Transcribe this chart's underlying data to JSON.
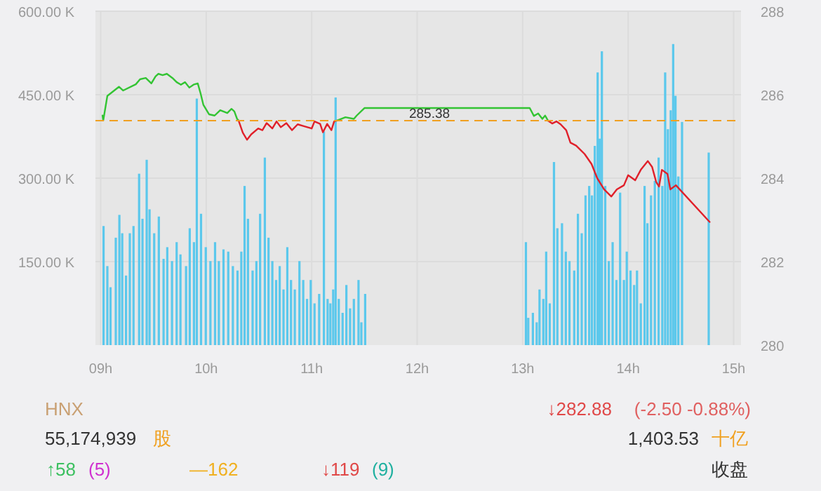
{
  "chart_data": [
    {
      "type": "bar",
      "xlim": [
        8.95,
        15.07
      ],
      "xticks": [
        {
          "value": 9,
          "label": "09h"
        },
        {
          "value": 10,
          "label": "10h"
        },
        {
          "value": 11,
          "label": "11h"
        },
        {
          "value": 12,
          "label": "12h"
        },
        {
          "value": 13,
          "label": "13h"
        },
        {
          "value": 14,
          "label": "14h"
        },
        {
          "value": 15,
          "label": "15h"
        }
      ],
      "ylim": [
        0,
        600000
      ],
      "yticks": [
        {
          "value": 150000,
          "label": "150.00 K"
        },
        {
          "value": 300000,
          "label": "300.00 K"
        },
        {
          "value": 450000,
          "label": "450.00 K"
        },
        {
          "value": 600000,
          "label": "600.00 K"
        }
      ],
      "y2lim": [
        280,
        288
      ],
      "y2ticks": [
        280,
        282,
        284,
        286,
        288
      ],
      "grid": true,
      "ref_lines": [
        {
          "axis": "y2",
          "value": 285.38,
          "label": "285.38",
          "color": "#f0a020",
          "line_style": "dashed"
        }
      ],
      "series": [
        {
          "type": "bar",
          "color": "#5bc8ec",
          "x": [
            9.027,
            9.063,
            9.093,
            9.143,
            9.177,
            9.204,
            9.24,
            9.276,
            9.311,
            9.364,
            9.396,
            9.436,
            9.463,
            9.507,
            9.551,
            9.596,
            9.631,
            9.676,
            9.72,
            9.756,
            9.809,
            9.844,
            9.884,
            9.911,
            9.951,
            9.996,
            10.04,
            10.084,
            10.12,
            10.164,
            10.209,
            10.253,
            10.297,
            10.333,
            10.364,
            10.396,
            10.44,
            10.476,
            10.511,
            10.556,
            10.591,
            10.627,
            10.663,
            10.697,
            10.733,
            10.769,
            10.804,
            10.84,
            10.884,
            10.92,
            10.956,
            10.991,
            11.027,
            11.071,
            11.116,
            11.151,
            11.177,
            11.204,
            11.227,
            11.257,
            11.293,
            11.329,
            11.364,
            11.4,
            11.444,
            11.471,
            11.507,
            13.031,
            13.053,
            13.097,
            13.133,
            13.16,
            13.196,
            13.223,
            13.257,
            13.297,
            13.329,
            13.373,
            13.409,
            13.444,
            13.489,
            13.524,
            13.56,
            13.596,
            13.631,
            13.657,
            13.684,
            13.711,
            13.729,
            13.751,
            13.783,
            13.817,
            13.853,
            13.889,
            13.924,
            13.96,
            13.987,
            14.023,
            14.057,
            14.084,
            14.12,
            14.156,
            14.183,
            14.217,
            14.253,
            14.289,
            14.324,
            14.351,
            14.377,
            14.404,
            14.427,
            14.449,
            14.476,
            14.511,
            14.764
          ],
          "values": [
            214000,
            142000,
            104000,
            193000,
            234000,
            201000,
            125000,
            201000,
            214000,
            308000,
            227000,
            333000,
            244000,
            201000,
            231000,
            155000,
            176000,
            151000,
            185000,
            163000,
            142000,
            210000,
            185000,
            443000,
            236000,
            176000,
            151000,
            185000,
            151000,
            172000,
            168000,
            142000,
            134000,
            168000,
            286000,
            227000,
            134000,
            151000,
            236000,
            337000,
            193000,
            151000,
            117000,
            142000,
            100000,
            176000,
            117000,
            100000,
            151000,
            117000,
            83000,
            117000,
            75000,
            92000,
            384000,
            83000,
            75000,
            100000,
            445000,
            83000,
            58000,
            108000,
            66000,
            83000,
            117000,
            41000,
            92000,
            185000,
            49000,
            58000,
            41000,
            100000,
            83000,
            168000,
            75000,
            329000,
            210000,
            219000,
            168000,
            151000,
            134000,
            236000,
            201000,
            269000,
            286000,
            269000,
            358000,
            490000,
            371000,
            528000,
            286000,
            151000,
            185000,
            117000,
            274000,
            117000,
            168000,
            134000,
            108000,
            134000,
            75000,
            286000,
            219000,
            269000,
            295000,
            337000,
            286000,
            490000,
            388000,
            422000,
            541000,
            448000,
            303000,
            401000,
            346000
          ]
        },
        {
          "type": "line",
          "axis": "y2",
          "color": "#33c433",
          "x": [
            9.017,
            9.024,
            9.063,
            9.173,
            9.213,
            9.333,
            9.373,
            9.427,
            9.48,
            9.52,
            9.547,
            9.587,
            9.627,
            9.68,
            9.72,
            9.76,
            9.8,
            9.84,
            9.88,
            9.92,
            9.947,
            9.973,
            10.027,
            10.08,
            10.133,
            10.2,
            10.24,
            10.267,
            10.293,
            10.307
          ],
          "values": [
            285.5,
            285.38,
            285.97,
            286.19,
            286.1,
            286.25,
            286.37,
            286.4,
            286.27,
            286.44,
            286.5,
            286.47,
            286.5,
            286.4,
            286.3,
            286.24,
            286.3,
            286.17,
            286.24,
            286.27,
            286.03,
            285.76,
            285.53,
            285.5,
            285.63,
            285.56,
            285.66,
            285.6,
            285.42,
            285.38
          ]
        },
        {
          "type": "line",
          "axis": "y2",
          "color": "#33c433",
          "x": [
            11.24,
            11.32,
            11.4,
            11.427,
            11.5,
            13.067,
            13.107,
            13.147,
            13.187,
            13.213,
            13.24
          ],
          "values": [
            285.38,
            285.46,
            285.42,
            285.5,
            285.68,
            285.68,
            285.49,
            285.55,
            285.42,
            285.5,
            285.38
          ]
        },
        {
          "type": "line",
          "axis": "y2",
          "color": "#e0202a",
          "x": [
            10.307,
            10.347,
            10.387,
            10.427,
            10.493,
            10.533,
            10.573,
            10.627,
            10.667,
            10.707,
            10.76,
            10.813,
            10.867,
            10.92,
            11.0,
            11.027,
            11.08,
            11.107,
            11.147,
            11.187,
            11.213,
            11.24
          ],
          "values": [
            285.38,
            285.09,
            284.92,
            285.05,
            285.19,
            285.15,
            285.32,
            285.19,
            285.36,
            285.22,
            285.32,
            285.15,
            285.29,
            285.25,
            285.19,
            285.36,
            285.3,
            285.1,
            285.3,
            285.15,
            285.36,
            285.38
          ]
        },
        {
          "type": "line",
          "axis": "y2",
          "color": "#e0202a",
          "x": [
            13.24,
            13.28,
            13.32,
            13.36,
            13.413,
            13.453,
            13.507,
            13.587,
            13.653,
            13.707,
            13.773,
            13.84,
            13.893,
            13.96,
            14.0,
            14.067,
            14.12,
            14.187,
            14.227,
            14.267,
            14.293,
            14.32,
            14.373,
            14.4,
            14.453,
            14.773
          ],
          "values": [
            285.38,
            285.31,
            285.36,
            285.29,
            285.15,
            284.85,
            284.78,
            284.58,
            284.34,
            284.0,
            283.73,
            283.56,
            283.73,
            283.83,
            284.07,
            283.95,
            284.2,
            284.41,
            284.27,
            283.9,
            283.8,
            284.2,
            284.1,
            283.73,
            283.83,
            282.95
          ]
        }
      ]
    },
    {
      "type": "other",
      "annotations": [
        "HNX",
        "↓282.88",
        "(-2.50 -0.88%)",
        "55,174,939",
        "股",
        "1,403.53",
        "十亿",
        "↑58",
        "(5)",
        "—162",
        "↓119",
        "(9)",
        "收盘"
      ]
    }
  ]
}
